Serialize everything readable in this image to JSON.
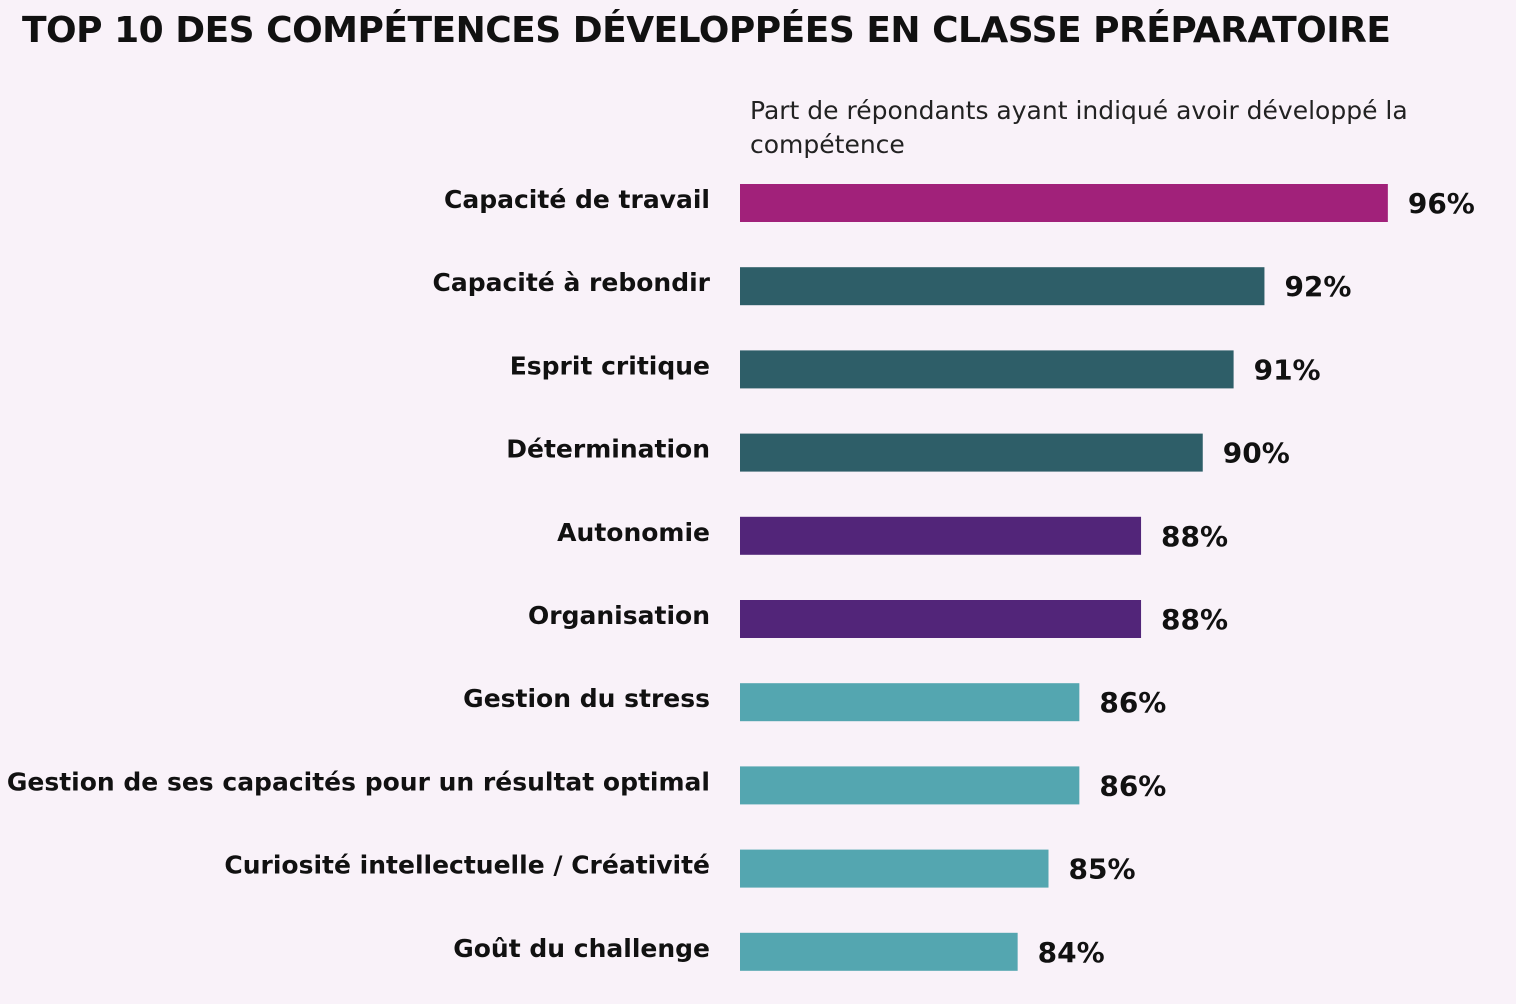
{
  "chart_data": {
    "type": "bar",
    "orientation": "horizontal",
    "title": "TOP 10 DES COMPÉTENCES DÉVELOPPÉES EN CLASSE PRÉPARATOIRE",
    "subtitle": "Part de répondants ayant indiqué avoir développé la compétence",
    "categories": [
      "Capacité de travail",
      "Capacité à rebondir",
      "Esprit critique",
      "Détermination",
      "Autonomie",
      "Organisation",
      "Gestion du stress",
      "Gestion de ses capacités pour un résultat optimal",
      "Curiosité intellectuelle / Créativité",
      "Goût du challenge"
    ],
    "values": [
      96,
      92,
      91,
      90,
      88,
      88,
      86,
      86,
      85,
      84
    ],
    "value_labels": [
      "96%",
      "92%",
      "91%",
      "90%",
      "88%",
      "88%",
      "86%",
      "86%",
      "85%",
      "84%"
    ],
    "bar_colors": [
      "#a1217a",
      "#2e5e68",
      "#2e5e68",
      "#2e5e68",
      "#522579",
      "#522579",
      "#54a6b0",
      "#54a6b0",
      "#54a6b0",
      "#54a6b0"
    ],
    "unit": "%",
    "grid": false,
    "legend": "none"
  },
  "colors": {
    "background": "#f9f2f9",
    "text": "#111111"
  }
}
